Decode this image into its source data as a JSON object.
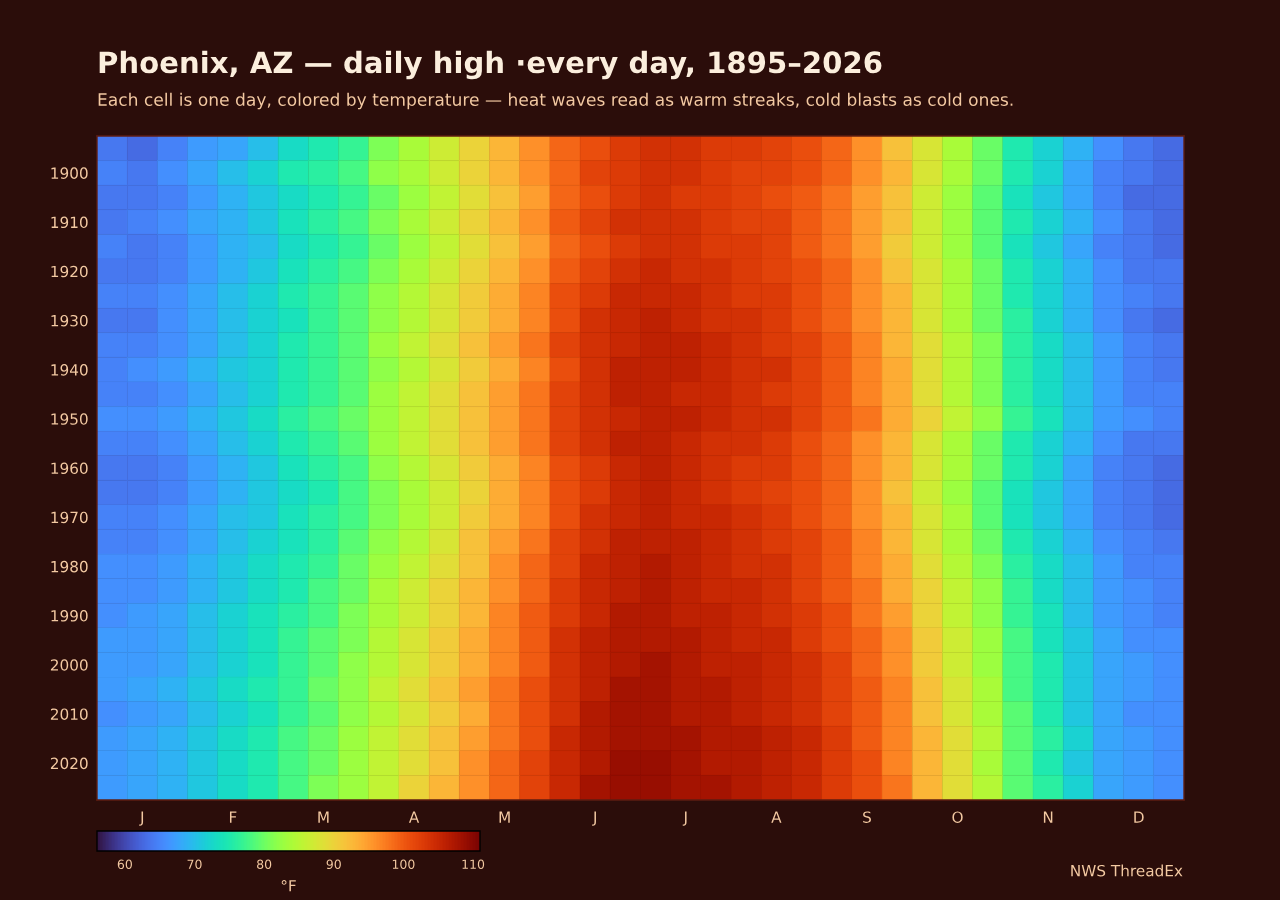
{
  "chart_data": {
    "type": "heatmap",
    "title": "Phoenix, AZ — daily high ·every day, 1895–2026",
    "subtitle": "Each cell is one day, colored by temperature — heat waves read as warm streaks, cold blasts as cold ones.",
    "categories": [
      null,
      "J",
      null,
      null,
      "F",
      null,
      null,
      "M",
      null,
      null,
      "A",
      null,
      null,
      "M",
      null,
      null,
      "J",
      null,
      null,
      "J",
      null,
      null,
      "A",
      null,
      null,
      "S",
      null,
      null,
      "O",
      null,
      null,
      "N",
      null,
      null,
      "D",
      null
    ],
    "y_categories": [
      null,
      "1900",
      null,
      "1910",
      null,
      "1920",
      null,
      "1930",
      null,
      "1940",
      null,
      "1950",
      null,
      "1960",
      null,
      "1970",
      null,
      "1980",
      null,
      "1990",
      null,
      "2000",
      null,
      "2010",
      null,
      "2020",
      null
    ],
    "cells": [
      [
        64,
        63,
        65,
        67,
        68,
        70,
        73,
        75,
        77,
        81,
        84,
        87,
        90,
        93,
        96,
        99,
        101,
        103,
        104,
        104,
        103,
        103,
        102,
        101,
        99,
        96,
        92,
        88,
        84,
        80,
        75,
        72,
        69,
        66,
        64,
        63
      ],
      [
        65,
        64,
        66,
        68,
        70,
        72,
        75,
        76,
        78,
        82,
        84,
        87,
        90,
        93,
        96,
        99,
        102,
        103,
        104,
        104,
        103,
        102,
        102,
        101,
        99,
        96,
        93,
        88,
        84,
        80,
        75,
        72,
        68,
        65,
        64,
        63
      ],
      [
        64,
        64,
        65,
        67,
        69,
        71,
        73,
        75,
        77,
        80,
        83,
        86,
        89,
        92,
        95,
        99,
        101,
        103,
        104,
        103,
        103,
        102,
        101,
        100,
        98,
        95,
        92,
        87,
        83,
        79,
        74,
        71,
        68,
        65,
        63,
        63
      ],
      [
        64,
        65,
        66,
        68,
        69,
        71,
        74,
        76,
        78,
        81,
        84,
        87,
        90,
        93,
        96,
        100,
        102,
        104,
        104,
        104,
        103,
        102,
        102,
        100,
        98,
        95,
        92,
        87,
        83,
        79,
        75,
        72,
        69,
        66,
        64,
        63
      ],
      [
        65,
        64,
        65,
        67,
        69,
        70,
        73,
        75,
        77,
        80,
        83,
        86,
        89,
        92,
        95,
        99,
        101,
        103,
        104,
        104,
        103,
        103,
        102,
        100,
        98,
        95,
        91,
        87,
        83,
        79,
        74,
        71,
        68,
        65,
        64,
        63
      ],
      [
        64,
        64,
        65,
        67,
        69,
        71,
        74,
        76,
        78,
        81,
        84,
        87,
        90,
        93,
        96,
        100,
        102,
        104,
        105,
        104,
        104,
        103,
        102,
        101,
        99,
        96,
        92,
        88,
        84,
        80,
        75,
        72,
        69,
        66,
        64,
        64
      ],
      [
        65,
        65,
        66,
        68,
        70,
        72,
        75,
        77,
        79,
        82,
        85,
        88,
        91,
        94,
        97,
        101,
        103,
        105,
        105,
        105,
        104,
        103,
        103,
        101,
        99,
        96,
        93,
        88,
        84,
        80,
        75,
        72,
        69,
        66,
        65,
        64
      ],
      [
        64,
        64,
        66,
        68,
        70,
        72,
        74,
        77,
        79,
        82,
        85,
        88,
        91,
        94,
        97,
        101,
        104,
        105,
        106,
        105,
        104,
        104,
        103,
        101,
        99,
        96,
        93,
        88,
        84,
        80,
        76,
        72,
        69,
        66,
        64,
        63
      ],
      [
        65,
        65,
        66,
        68,
        70,
        72,
        75,
        77,
        79,
        83,
        86,
        89,
        92,
        95,
        98,
        102,
        104,
        105,
        106,
        106,
        105,
        104,
        103,
        102,
        100,
        97,
        93,
        89,
        85,
        81,
        76,
        73,
        70,
        67,
        65,
        64
      ],
      [
        65,
        66,
        67,
        69,
        71,
        72,
        75,
        77,
        79,
        82,
        85,
        88,
        91,
        94,
        97,
        101,
        104,
        106,
        106,
        106,
        105,
        104,
        104,
        102,
        100,
        97,
        94,
        89,
        85,
        81,
        76,
        73,
        70,
        67,
        65,
        64
      ],
      [
        65,
        65,
        66,
        68,
        70,
        72,
        75,
        77,
        79,
        83,
        86,
        89,
        92,
        95,
        98,
        102,
        104,
        106,
        106,
        105,
        105,
        104,
        103,
        102,
        100,
        97,
        94,
        89,
        85,
        81,
        76,
        73,
        70,
        67,
        65,
        65
      ],
      [
        66,
        66,
        67,
        69,
        71,
        73,
        76,
        78,
        80,
        83,
        86,
        89,
        92,
        95,
        98,
        102,
        104,
        105,
        106,
        106,
        105,
        104,
        104,
        102,
        100,
        98,
        94,
        90,
        86,
        82,
        77,
        74,
        70,
        67,
        66,
        65
      ],
      [
        65,
        65,
        66,
        68,
        70,
        72,
        75,
        77,
        79,
        83,
        86,
        89,
        92,
        95,
        98,
        102,
        104,
        106,
        106,
        105,
        104,
        104,
        103,
        101,
        99,
        96,
        93,
        88,
        84,
        80,
        75,
        72,
        69,
        66,
        64,
        64
      ],
      [
        64,
        64,
        65,
        67,
        69,
        71,
        74,
        76,
        78,
        82,
        85,
        88,
        91,
        94,
        97,
        101,
        103,
        105,
        106,
        105,
        104,
        103,
        103,
        101,
        99,
        96,
        93,
        88,
        84,
        80,
        75,
        72,
        68,
        65,
        64,
        63
      ],
      [
        64,
        64,
        65,
        67,
        69,
        71,
        73,
        75,
        78,
        81,
        84,
        87,
        90,
        94,
        97,
        101,
        103,
        105,
        106,
        105,
        104,
        103,
        102,
        101,
        99,
        96,
        92,
        87,
        83,
        79,
        74,
        71,
        68,
        65,
        64,
        63
      ],
      [
        65,
        65,
        66,
        68,
        70,
        71,
        74,
        76,
        78,
        81,
        84,
        87,
        91,
        94,
        97,
        101,
        104,
        105,
        106,
        105,
        105,
        104,
        103,
        101,
        99,
        96,
        93,
        88,
        84,
        79,
        74,
        71,
        68,
        65,
        64,
        63
      ],
      [
        65,
        65,
        66,
        68,
        70,
        72,
        74,
        76,
        79,
        82,
        85,
        88,
        92,
        95,
        98,
        102,
        104,
        106,
        106,
        106,
        105,
        104,
        103,
        102,
        100,
        97,
        93,
        88,
        84,
        80,
        75,
        72,
        69,
        66,
        65,
        64
      ],
      [
        66,
        66,
        67,
        69,
        71,
        73,
        75,
        77,
        80,
        83,
        86,
        89,
        92,
        96,
        99,
        102,
        105,
        106,
        107,
        106,
        105,
        104,
        104,
        102,
        100,
        97,
        94,
        89,
        85,
        81,
        76,
        73,
        70,
        67,
        65,
        65
      ],
      [
        66,
        66,
        67,
        69,
        71,
        73,
        75,
        78,
        80,
        84,
        87,
        90,
        93,
        96,
        99,
        103,
        105,
        106,
        107,
        106,
        105,
        105,
        104,
        102,
        100,
        98,
        94,
        90,
        86,
        82,
        77,
        73,
        70,
        67,
        66,
        65
      ],
      [
        66,
        67,
        68,
        70,
        72,
        74,
        76,
        78,
        81,
        84,
        87,
        90,
        93,
        97,
        100,
        103,
        105,
        107,
        107,
        106,
        106,
        105,
        104,
        103,
        101,
        98,
        95,
        90,
        86,
        82,
        77,
        74,
        70,
        67,
        66,
        65
      ],
      [
        67,
        67,
        68,
        70,
        72,
        74,
        77,
        79,
        81,
        85,
        88,
        91,
        94,
        97,
        100,
        104,
        106,
        107,
        107,
        107,
        106,
        105,
        105,
        103,
        101,
        99,
        96,
        91,
        87,
        83,
        78,
        74,
        71,
        68,
        66,
        66
      ],
      [
        67,
        67,
        68,
        70,
        72,
        74,
        77,
        79,
        82,
        85,
        88,
        91,
        94,
        97,
        100,
        104,
        106,
        107,
        108,
        107,
        106,
        106,
        105,
        104,
        102,
        99,
        96,
        91,
        87,
        83,
        78,
        75,
        71,
        68,
        67,
        66
      ],
      [
        67,
        68,
        69,
        71,
        73,
        75,
        77,
        80,
        82,
        86,
        89,
        92,
        95,
        98,
        101,
        104,
        106,
        108,
        108,
        107,
        107,
        106,
        105,
        104,
        102,
        100,
        97,
        92,
        88,
        84,
        78,
        75,
        71,
        68,
        67,
        66
      ],
      [
        66,
        67,
        68,
        70,
        72,
        74,
        77,
        79,
        82,
        85,
        88,
        91,
        94,
        98,
        101,
        104,
        107,
        108,
        108,
        107,
        107,
        106,
        105,
        104,
        102,
        100,
        97,
        92,
        88,
        84,
        79,
        75,
        71,
        68,
        66,
        66
      ],
      [
        67,
        68,
        69,
        71,
        73,
        75,
        78,
        80,
        83,
        86,
        89,
        92,
        95,
        98,
        101,
        105,
        107,
        108,
        108,
        108,
        107,
        107,
        106,
        105,
        103,
        100,
        97,
        93,
        89,
        85,
        79,
        76,
        72,
        68,
        67,
        66
      ],
      [
        67,
        68,
        69,
        71,
        73,
        75,
        78,
        80,
        83,
        86,
        89,
        92,
        96,
        99,
        102,
        105,
        107,
        109,
        109,
        108,
        107,
        107,
        106,
        105,
        103,
        101,
        97,
        93,
        89,
        84,
        79,
        75,
        71,
        68,
        67,
        66
      ],
      [
        67,
        68,
        69,
        71,
        73,
        75,
        78,
        81,
        83,
        86,
        90,
        93,
        96,
        99,
        102,
        105,
        108,
        109,
        109,
        108,
        108,
        107,
        106,
        105,
        103,
        101,
        98,
        93,
        89,
        85,
        79,
        76,
        72,
        68,
        67,
        66
      ]
    ],
    "clim": [
      56,
      111
    ],
    "cticks": [
      60,
      70,
      80,
      90,
      100,
      110
    ],
    "clabel": "°F",
    "annotations": [
      "NWS ThreadEx"
    ]
  }
}
